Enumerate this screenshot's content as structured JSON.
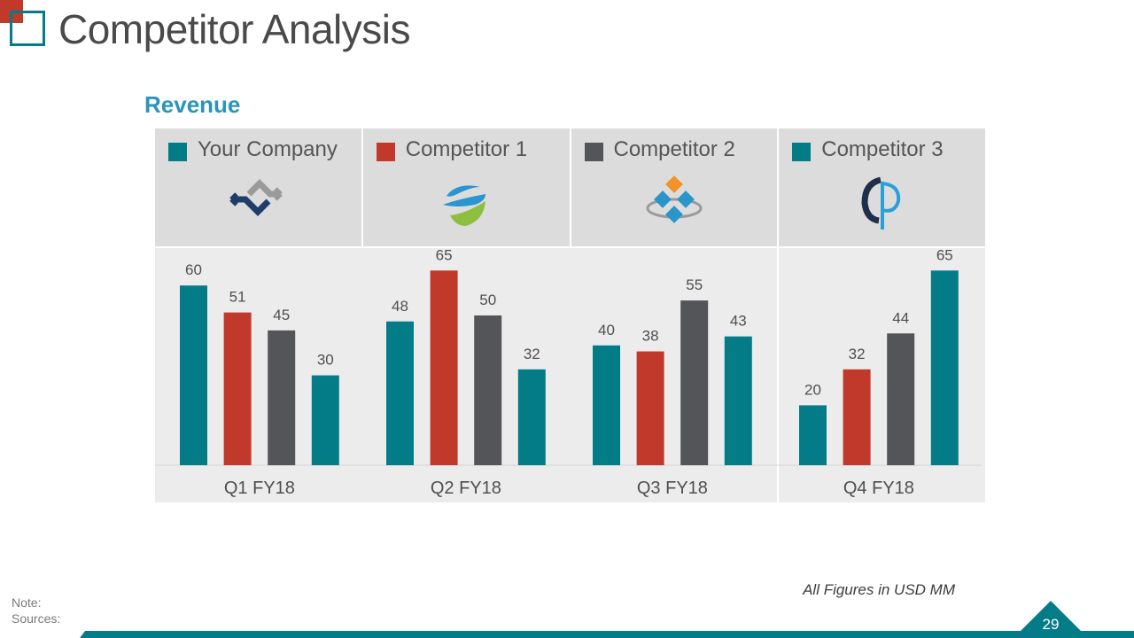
{
  "page": {
    "title": "Competitor Analysis",
    "note_label": "Note:",
    "sources_label": "Sources:",
    "footnote": "All Figures in USD MM",
    "page_number": "29"
  },
  "colors": {
    "teal": "#047c87",
    "red": "#c0392b",
    "gray": "#545559",
    "heading_blue": "#2a95b8"
  },
  "legend": [
    {
      "name": "Your Company",
      "color": "#047c87",
      "logo": "chevron-arrows-logo-icon"
    },
    {
      "name": "Competitor 1",
      "color": "#c0392b",
      "logo": "globe-swoosh-logo-icon"
    },
    {
      "name": "Competitor 2",
      "color": "#545559",
      "logo": "diamond-tiles-logo-icon"
    },
    {
      "name": "Competitor 3",
      "color": "#047c87",
      "logo": "letter-p-logo-icon"
    }
  ],
  "chart_data": {
    "type": "bar",
    "title": "Revenue",
    "xlabel": "",
    "ylabel": "",
    "ylim": [
      0,
      70
    ],
    "grid": false,
    "legend_position": "top",
    "categories": [
      "Q1 FY18",
      "Q2 FY18",
      "Q3 FY18",
      "Q4 FY18"
    ],
    "series": [
      {
        "name": "Your Company",
        "color": "#047c87",
        "values": [
          60,
          48,
          40,
          20
        ]
      },
      {
        "name": "Competitor 1",
        "color": "#c0392b",
        "values": [
          51,
          65,
          38,
          32
        ]
      },
      {
        "name": "Competitor 2",
        "color": "#545559",
        "values": [
          45,
          50,
          55,
          44
        ]
      },
      {
        "name": "Competitor 3",
        "color": "#047c87",
        "values": [
          30,
          32,
          43,
          65
        ]
      }
    ],
    "unit_note": "All Figures in USD MM"
  }
}
